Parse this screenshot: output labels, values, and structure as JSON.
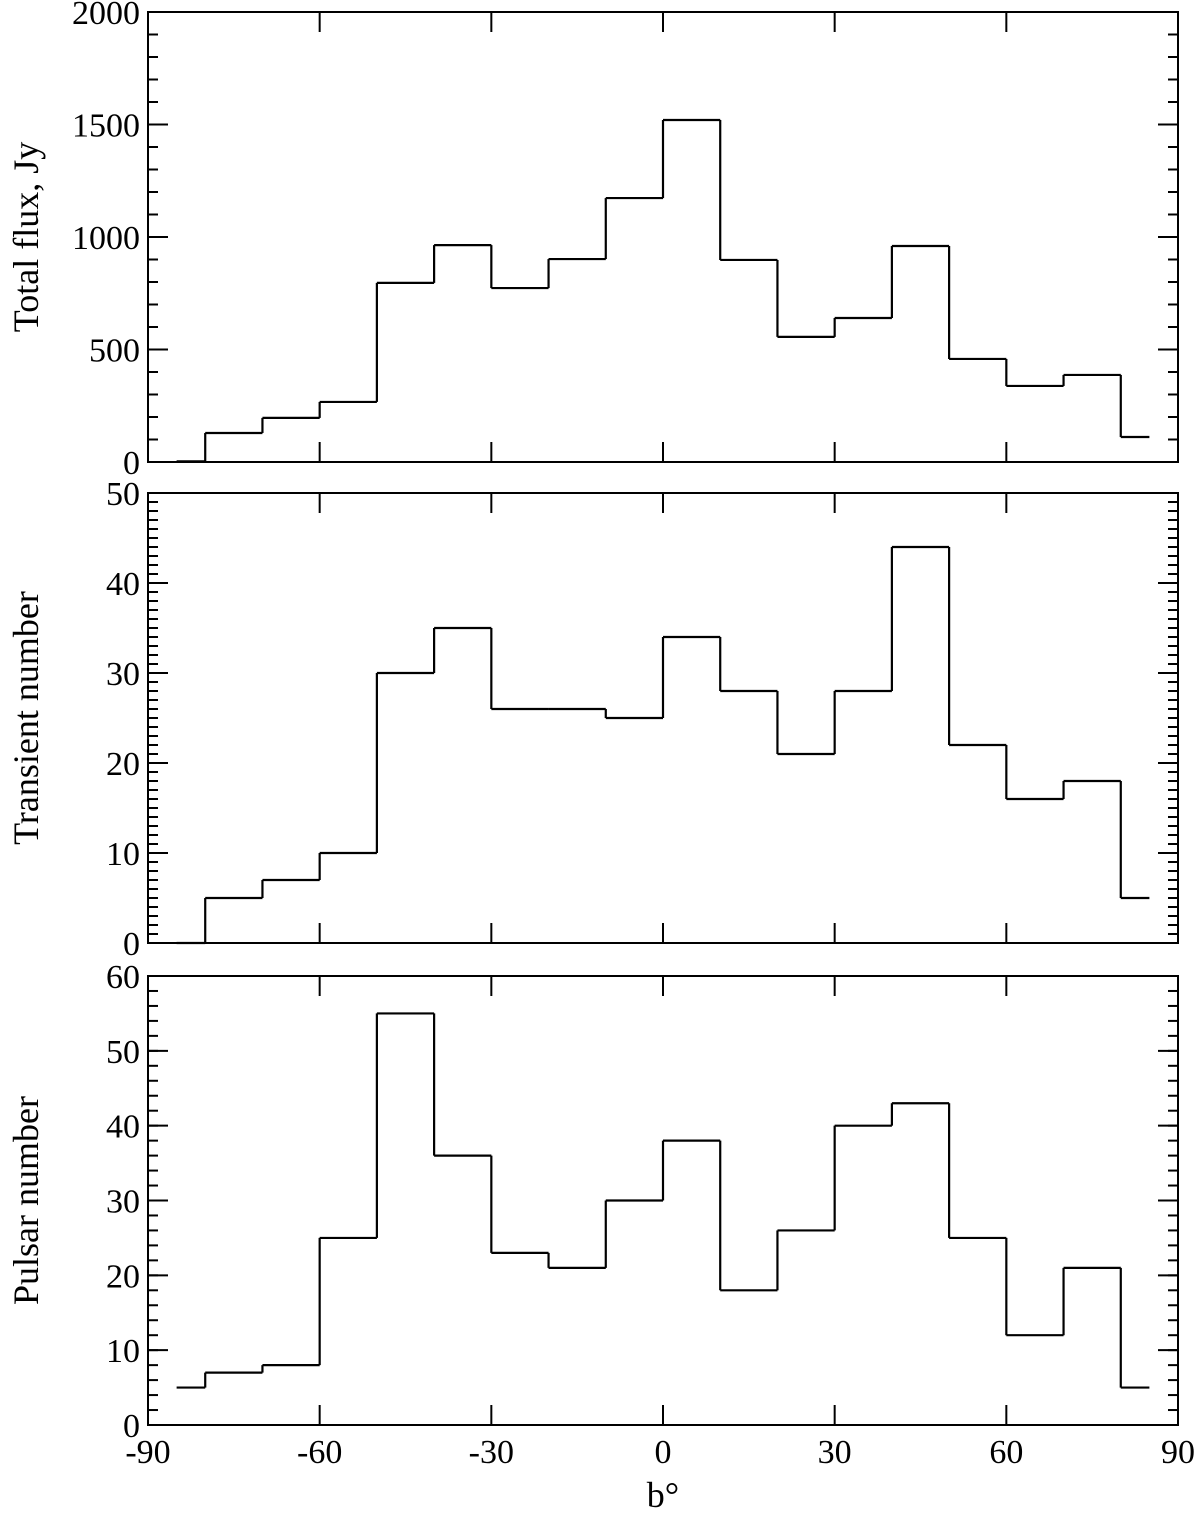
{
  "chart_data": [
    {
      "type": "line",
      "step": true,
      "ylabel": "Total flux, Jy",
      "ylim": [
        0,
        2000
      ],
      "yticks": [
        "0",
        "500",
        "1000",
        "1500",
        "2000"
      ],
      "ytick_values": [
        0,
        500,
        1000,
        1500,
        2000
      ],
      "yminor": 100,
      "x": [
        -85,
        -75,
        -65,
        -55,
        -45,
        -35,
        -25,
        -15,
        -5,
        5,
        15,
        25,
        35,
        45,
        55,
        65,
        75,
        85
      ],
      "values": [
        3,
        129,
        196,
        267,
        796,
        964,
        773,
        902,
        1173,
        1520,
        898,
        556,
        640,
        960,
        458,
        338,
        387,
        111
      ]
    },
    {
      "type": "line",
      "step": true,
      "ylabel": "Transient number",
      "ylim": [
        0,
        50
      ],
      "yticks": [
        "0",
        "10",
        "20",
        "30",
        "40",
        "50"
      ],
      "ytick_values": [
        0,
        10,
        20,
        30,
        40,
        50
      ],
      "yminor": 1,
      "x": [
        -85,
        -75,
        -65,
        -55,
        -45,
        -35,
        -25,
        -15,
        -5,
        5,
        15,
        25,
        35,
        45,
        55,
        65,
        75,
        85
      ],
      "values": [
        0,
        5,
        7,
        10,
        30,
        35,
        26,
        26,
        25,
        34,
        28,
        21,
        28,
        44,
        22,
        16,
        18,
        5
      ]
    },
    {
      "type": "line",
      "step": true,
      "ylabel": "Pulsar number",
      "xlabel": "b°",
      "ylim": [
        0,
        60
      ],
      "yticks": [
        "0",
        "10",
        "20",
        "30",
        "40",
        "50",
        "60"
      ],
      "ytick_values": [
        0,
        10,
        20,
        30,
        40,
        50,
        60
      ],
      "yminor": 2,
      "x": [
        -85,
        -75,
        -65,
        -55,
        -45,
        -35,
        -25,
        -15,
        -5,
        5,
        15,
        25,
        35,
        45,
        55,
        65,
        75,
        85
      ],
      "values": [
        5,
        7,
        8,
        25,
        55,
        36,
        23,
        21,
        30,
        38,
        18,
        26,
        40,
        43,
        25,
        12,
        21,
        5
      ]
    }
  ],
  "x_axis": {
    "xlim": [
      -90,
      90
    ],
    "xticks": [
      "-90",
      "-60",
      "-30",
      "0",
      "30",
      "60",
      "90"
    ],
    "xtick_values": [
      -90,
      -60,
      -30,
      0,
      30,
      60,
      90
    ]
  }
}
